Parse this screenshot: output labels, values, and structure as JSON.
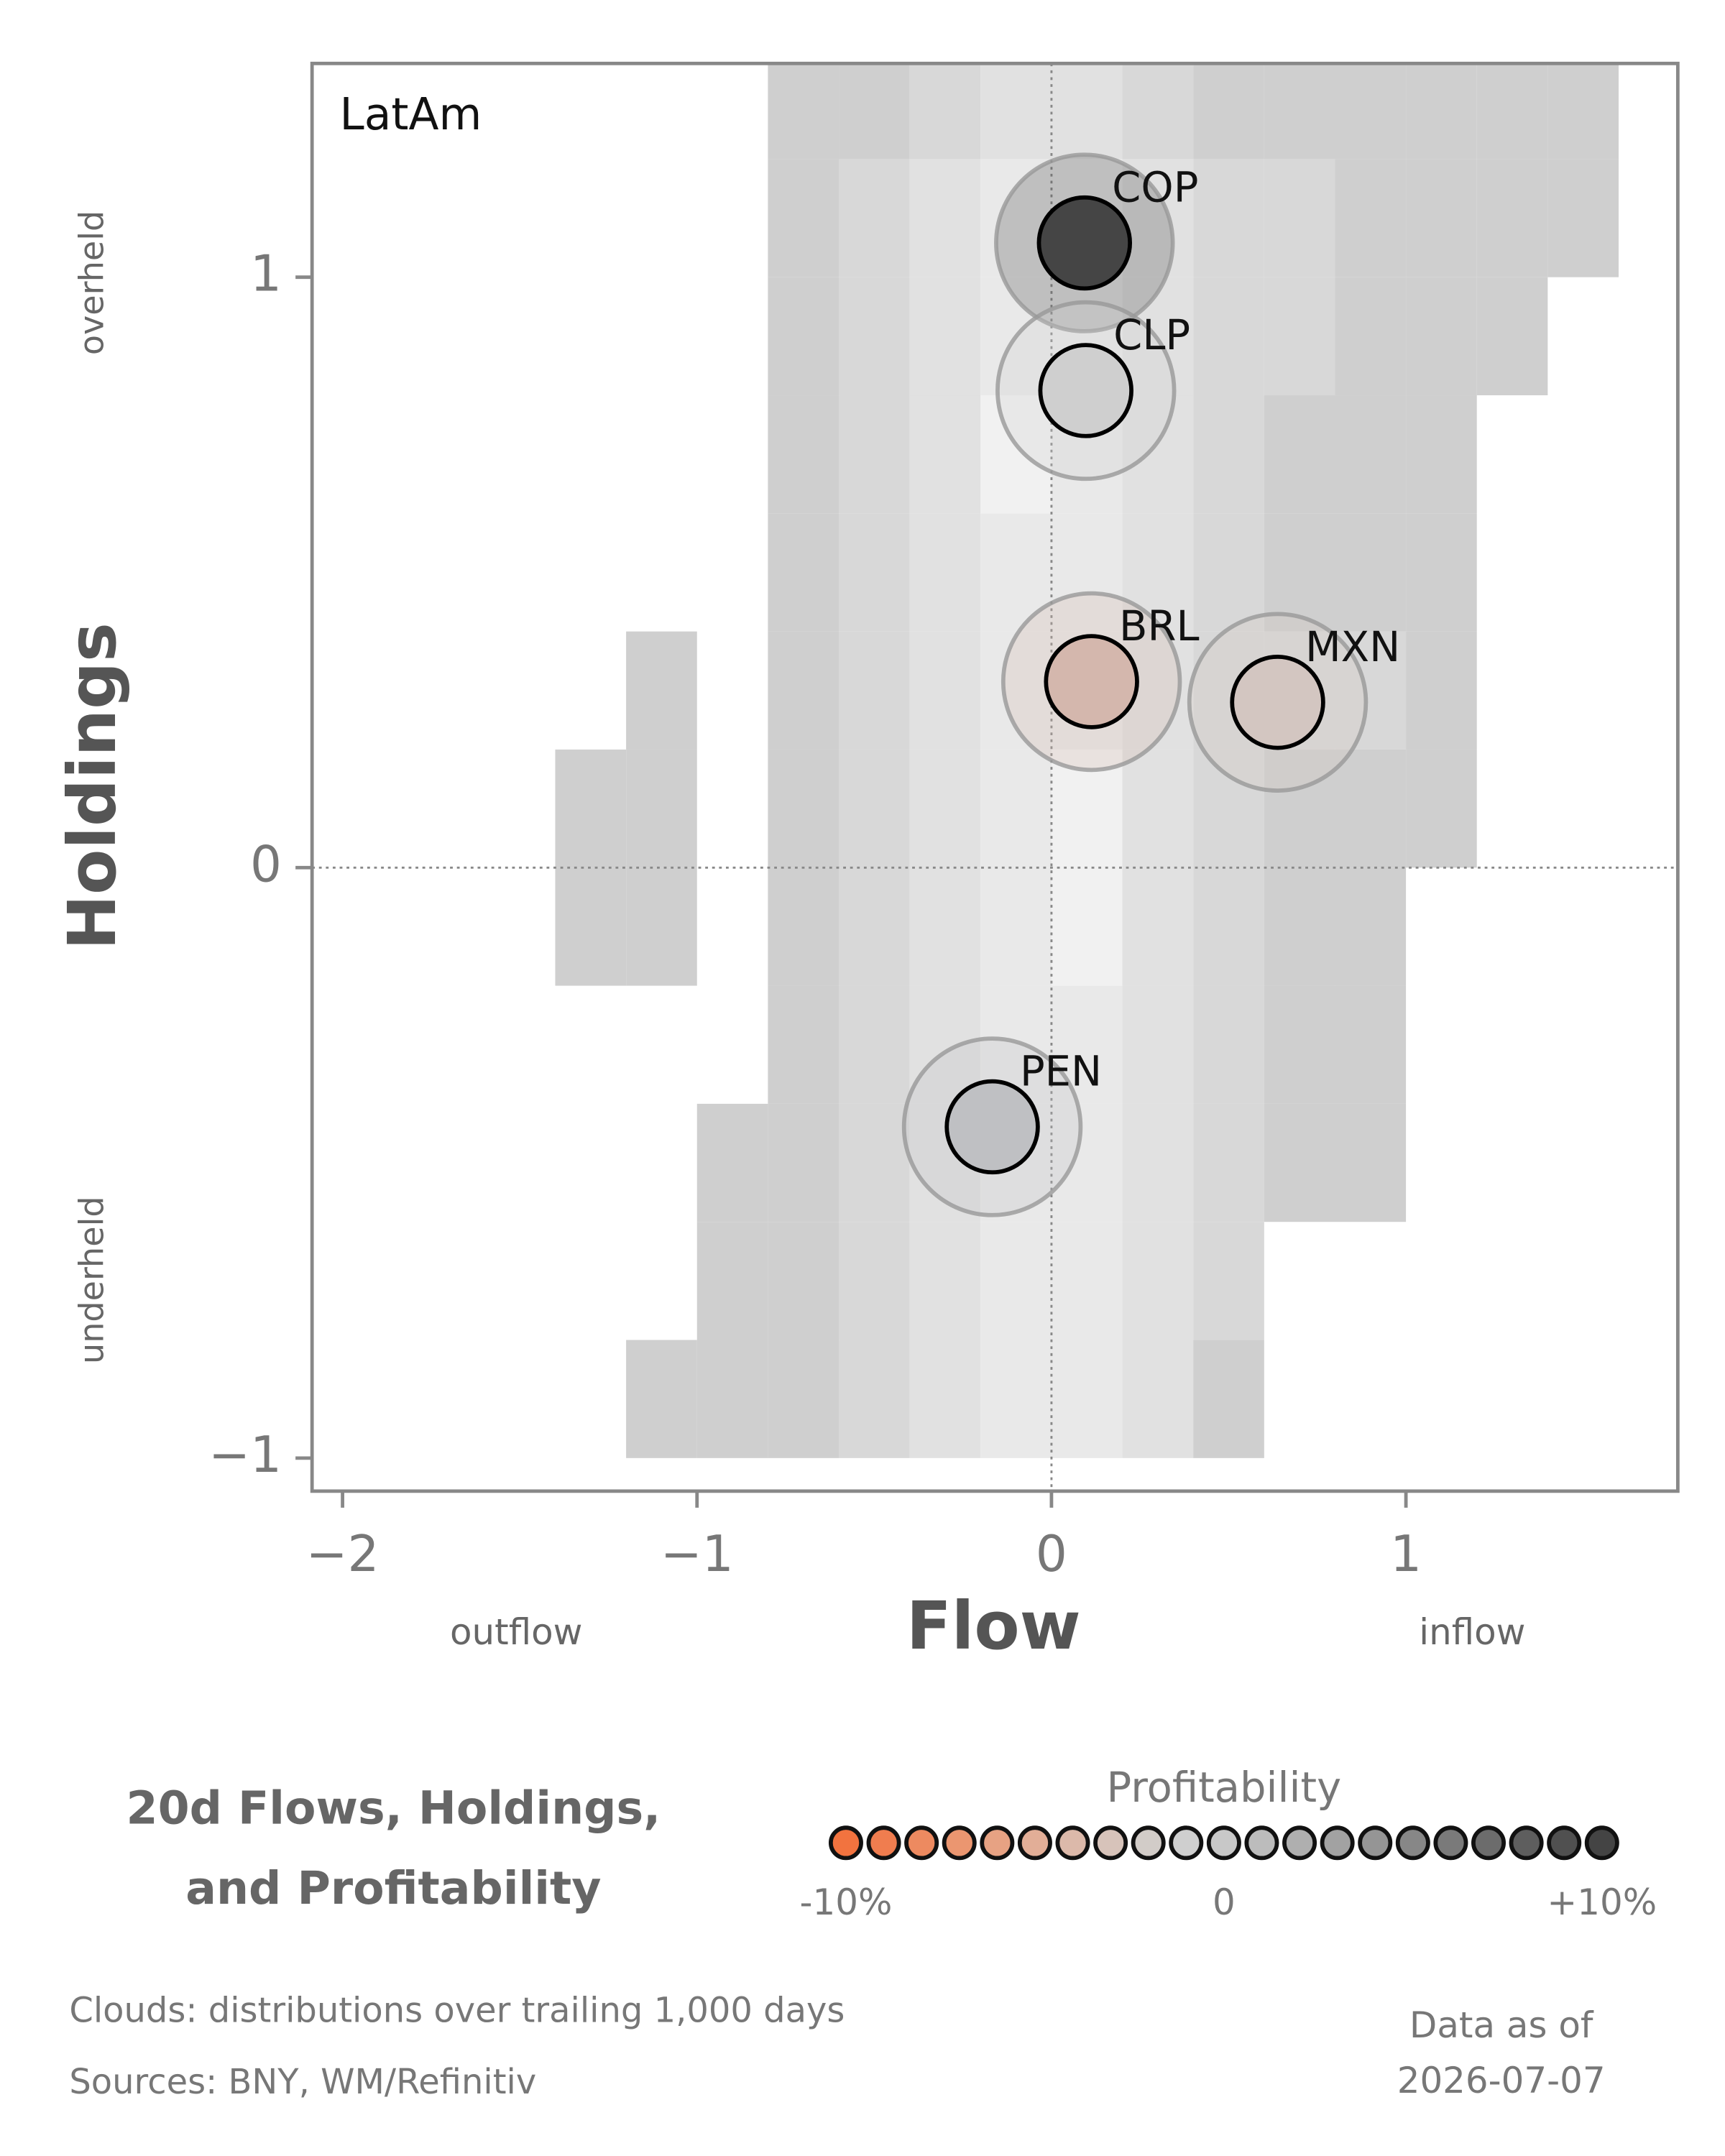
{
  "chart_data": {
    "type": "scatter",
    "panel_label": "LatAm",
    "title_lines": [
      "20d Flows, Holdings,",
      "and Profitability"
    ],
    "x_label": "Flow",
    "y_label": "Holdings",
    "x_low_label": "outflow",
    "x_high_label": "inflow",
    "y_high_label": "overheld",
    "y_low_label": "underheld",
    "xlim": [
      -2.086,
      1.767
    ],
    "ylim": [
      -1.056,
      1.362
    ],
    "xticks": [
      {
        "value": -2,
        "label": "−2"
      },
      {
        "value": -1,
        "label": "−1"
      },
      0,
      1
    ],
    "yticks": [
      {
        "value": -1,
        "label": "−1"
      },
      0,
      1
    ],
    "zero_lines": true,
    "points": [
      {
        "label": "COP",
        "x": 0.093,
        "y": 1.058,
        "profitability": 9,
        "color": "#454545"
      },
      {
        "label": "CLP",
        "x": 0.097,
        "y": 0.808,
        "profitability": 0,
        "color": "#cfcfcf"
      },
      {
        "label": "BRL",
        "x": 0.113,
        "y": 0.315,
        "profitability": -3,
        "color": "#d4b7ad"
      },
      {
        "label": "MXN",
        "x": 0.638,
        "y": 0.28,
        "profitability": -1.5,
        "color": "#d3c6c1"
      },
      {
        "label": "PEN",
        "x": -0.167,
        "y": -0.439,
        "profitability": 2,
        "color": "#bfc0c3"
      }
    ],
    "cloud": {
      "x_edges": [
        -1.4,
        -1.2,
        -1.0,
        -0.8,
        -0.6,
        -0.4,
        -0.2,
        0,
        0.2,
        0.4,
        0.6,
        0.8,
        1.0,
        1.2,
        1.4,
        1.6
      ],
      "y_edges": [
        -1.0,
        -0.8,
        -0.6,
        -0.4,
        -0.2,
        0,
        0.2,
        0.4,
        0.6,
        0.8,
        1.0,
        1.2,
        1.4
      ],
      "counts": [
        [
          0,
          1,
          1,
          1,
          2,
          3,
          4,
          4,
          3,
          1,
          0,
          0,
          0,
          0,
          0
        ],
        [
          0,
          0,
          1,
          1,
          2,
          3,
          4,
          4,
          3,
          2,
          0,
          0,
          0,
          0,
          0
        ],
        [
          0,
          0,
          1,
          1,
          2,
          3,
          4,
          4,
          3,
          2,
          1,
          1,
          0,
          0,
          0
        ],
        [
          0,
          0,
          0,
          1,
          2,
          3,
          4,
          4,
          3,
          2,
          1,
          1,
          0,
          0,
          0
        ],
        [
          1,
          1,
          0,
          1,
          2,
          3,
          4,
          5,
          3,
          2,
          1,
          1,
          0,
          0,
          0
        ],
        [
          1,
          1,
          0,
          1,
          2,
          3,
          4,
          5,
          3,
          2,
          1,
          1,
          1,
          0,
          0
        ],
        [
          0,
          1,
          0,
          1,
          2,
          3,
          4,
          4,
          3,
          2,
          2,
          2,
          1,
          0,
          0
        ],
        [
          0,
          0,
          0,
          1,
          2,
          3,
          4,
          4,
          3,
          2,
          1,
          1,
          1,
          0,
          0
        ],
        [
          0,
          0,
          0,
          1,
          2,
          3,
          5,
          4,
          3,
          2,
          1,
          1,
          1,
          0,
          0
        ],
        [
          0,
          0,
          0,
          1,
          2,
          3,
          4,
          4,
          3,
          2,
          2,
          1,
          1,
          1,
          0
        ],
        [
          0,
          0,
          0,
          1,
          2,
          3,
          4,
          4,
          3,
          2,
          2,
          1,
          1,
          1,
          1
        ],
        [
          0,
          0,
          0,
          1,
          1,
          2,
          3,
          3,
          2,
          1,
          1,
          1,
          1,
          1,
          1
        ]
      ]
    },
    "colorbar": {
      "title": "Profitability",
      "lim": [
        -10,
        10
      ],
      "ticks": [
        {
          "value": -10,
          "label": "-10%"
        },
        0,
        {
          "value": 10,
          "label": "+10%"
        }
      ],
      "colors": [
        "#f2733f",
        "#f07d4f",
        "#ed8a60",
        "#eb9670",
        "#e7a283",
        "#e2ae97",
        "#dcb9aa",
        "#d7c3ba",
        "#d2ccc8",
        "#cfcfcf",
        "#c8c8c8",
        "#bcbcbc",
        "#afafaf",
        "#a2a2a2",
        "#959595",
        "#878787",
        "#7a7a7a",
        "#6c6c6c",
        "#5e5e5e",
        "#505050",
        "#444444"
      ]
    },
    "notes": [
      "Clouds:  distributions over trailing 1,000 days",
      "Sources:  BNY, WM/Refinitiv"
    ],
    "as_of_lines": [
      "Data as of",
      "2026-07-07"
    ]
  }
}
